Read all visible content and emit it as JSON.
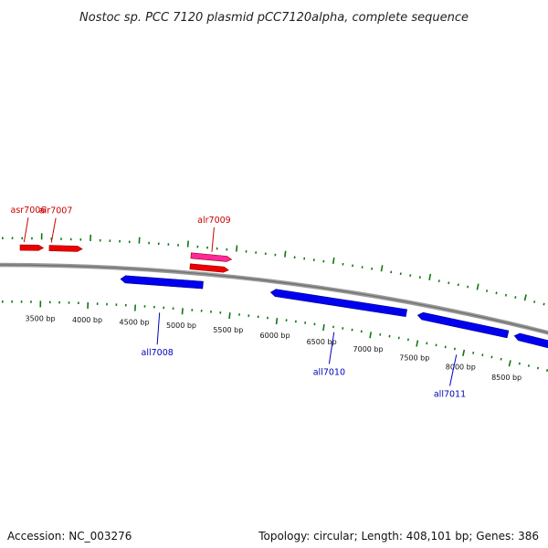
{
  "title": "Nostoc sp. PCC 7120 plasmid pCC7120alpha, complete sequence",
  "footer": {
    "accession_label": "Accession:",
    "accession": "NC_003276",
    "topology_label": "Topology:",
    "topology": "circular",
    "length_label": "Length:",
    "length": "408,101 bp",
    "genes_label": "Genes:",
    "genes": "386"
  },
  "scale": {
    "unit": "bp",
    "labels": [
      "3500 bp",
      "4000 bp",
      "4500 bp",
      "5000 bp",
      "5500 bp",
      "6000 bp",
      "6500 bp",
      "7000 bp",
      "7500 bp",
      "8000 bp",
      "8500 bp"
    ],
    "label_positions_bp": [
      3500,
      4000,
      4500,
      5000,
      5500,
      6000,
      6500,
      7000,
      7500,
      8000,
      8500
    ]
  },
  "genes": {
    "forward": [
      {
        "name": "asr7006",
        "start": 3280,
        "end": 3520,
        "label": "asr7006",
        "highlight": false
      },
      {
        "name": "alr7007",
        "start": 3580,
        "end": 3920,
        "label": "alr7007",
        "highlight": false
      },
      {
        "name": "alr7009",
        "start": 5040,
        "end": 5460,
        "label": "alr7009",
        "highlight": true
      },
      {
        "name": "alr7009-b",
        "start": 5040,
        "end": 5440,
        "label": "",
        "highlight": false
      }
    ],
    "reverse": [
      {
        "name": "all7008",
        "start": 4330,
        "end": 5190,
        "label": "all7008"
      },
      {
        "name": "all7010",
        "start": 5900,
        "end": 7330,
        "label": "all7010"
      },
      {
        "name": "all7011",
        "start": 7450,
        "end": 8410,
        "label": "all7011"
      },
      {
        "name": "all7012",
        "start": 8480,
        "end": 8950,
        "label": ""
      }
    ]
  },
  "colors": {
    "forward": "#ee0000",
    "forward_highlight": "#ff2a9a",
    "reverse": "#0000ee",
    "forward_label": "#cc0000",
    "reverse_label": "#0000bb",
    "ticks": "#117711",
    "backbone": "#888888"
  }
}
